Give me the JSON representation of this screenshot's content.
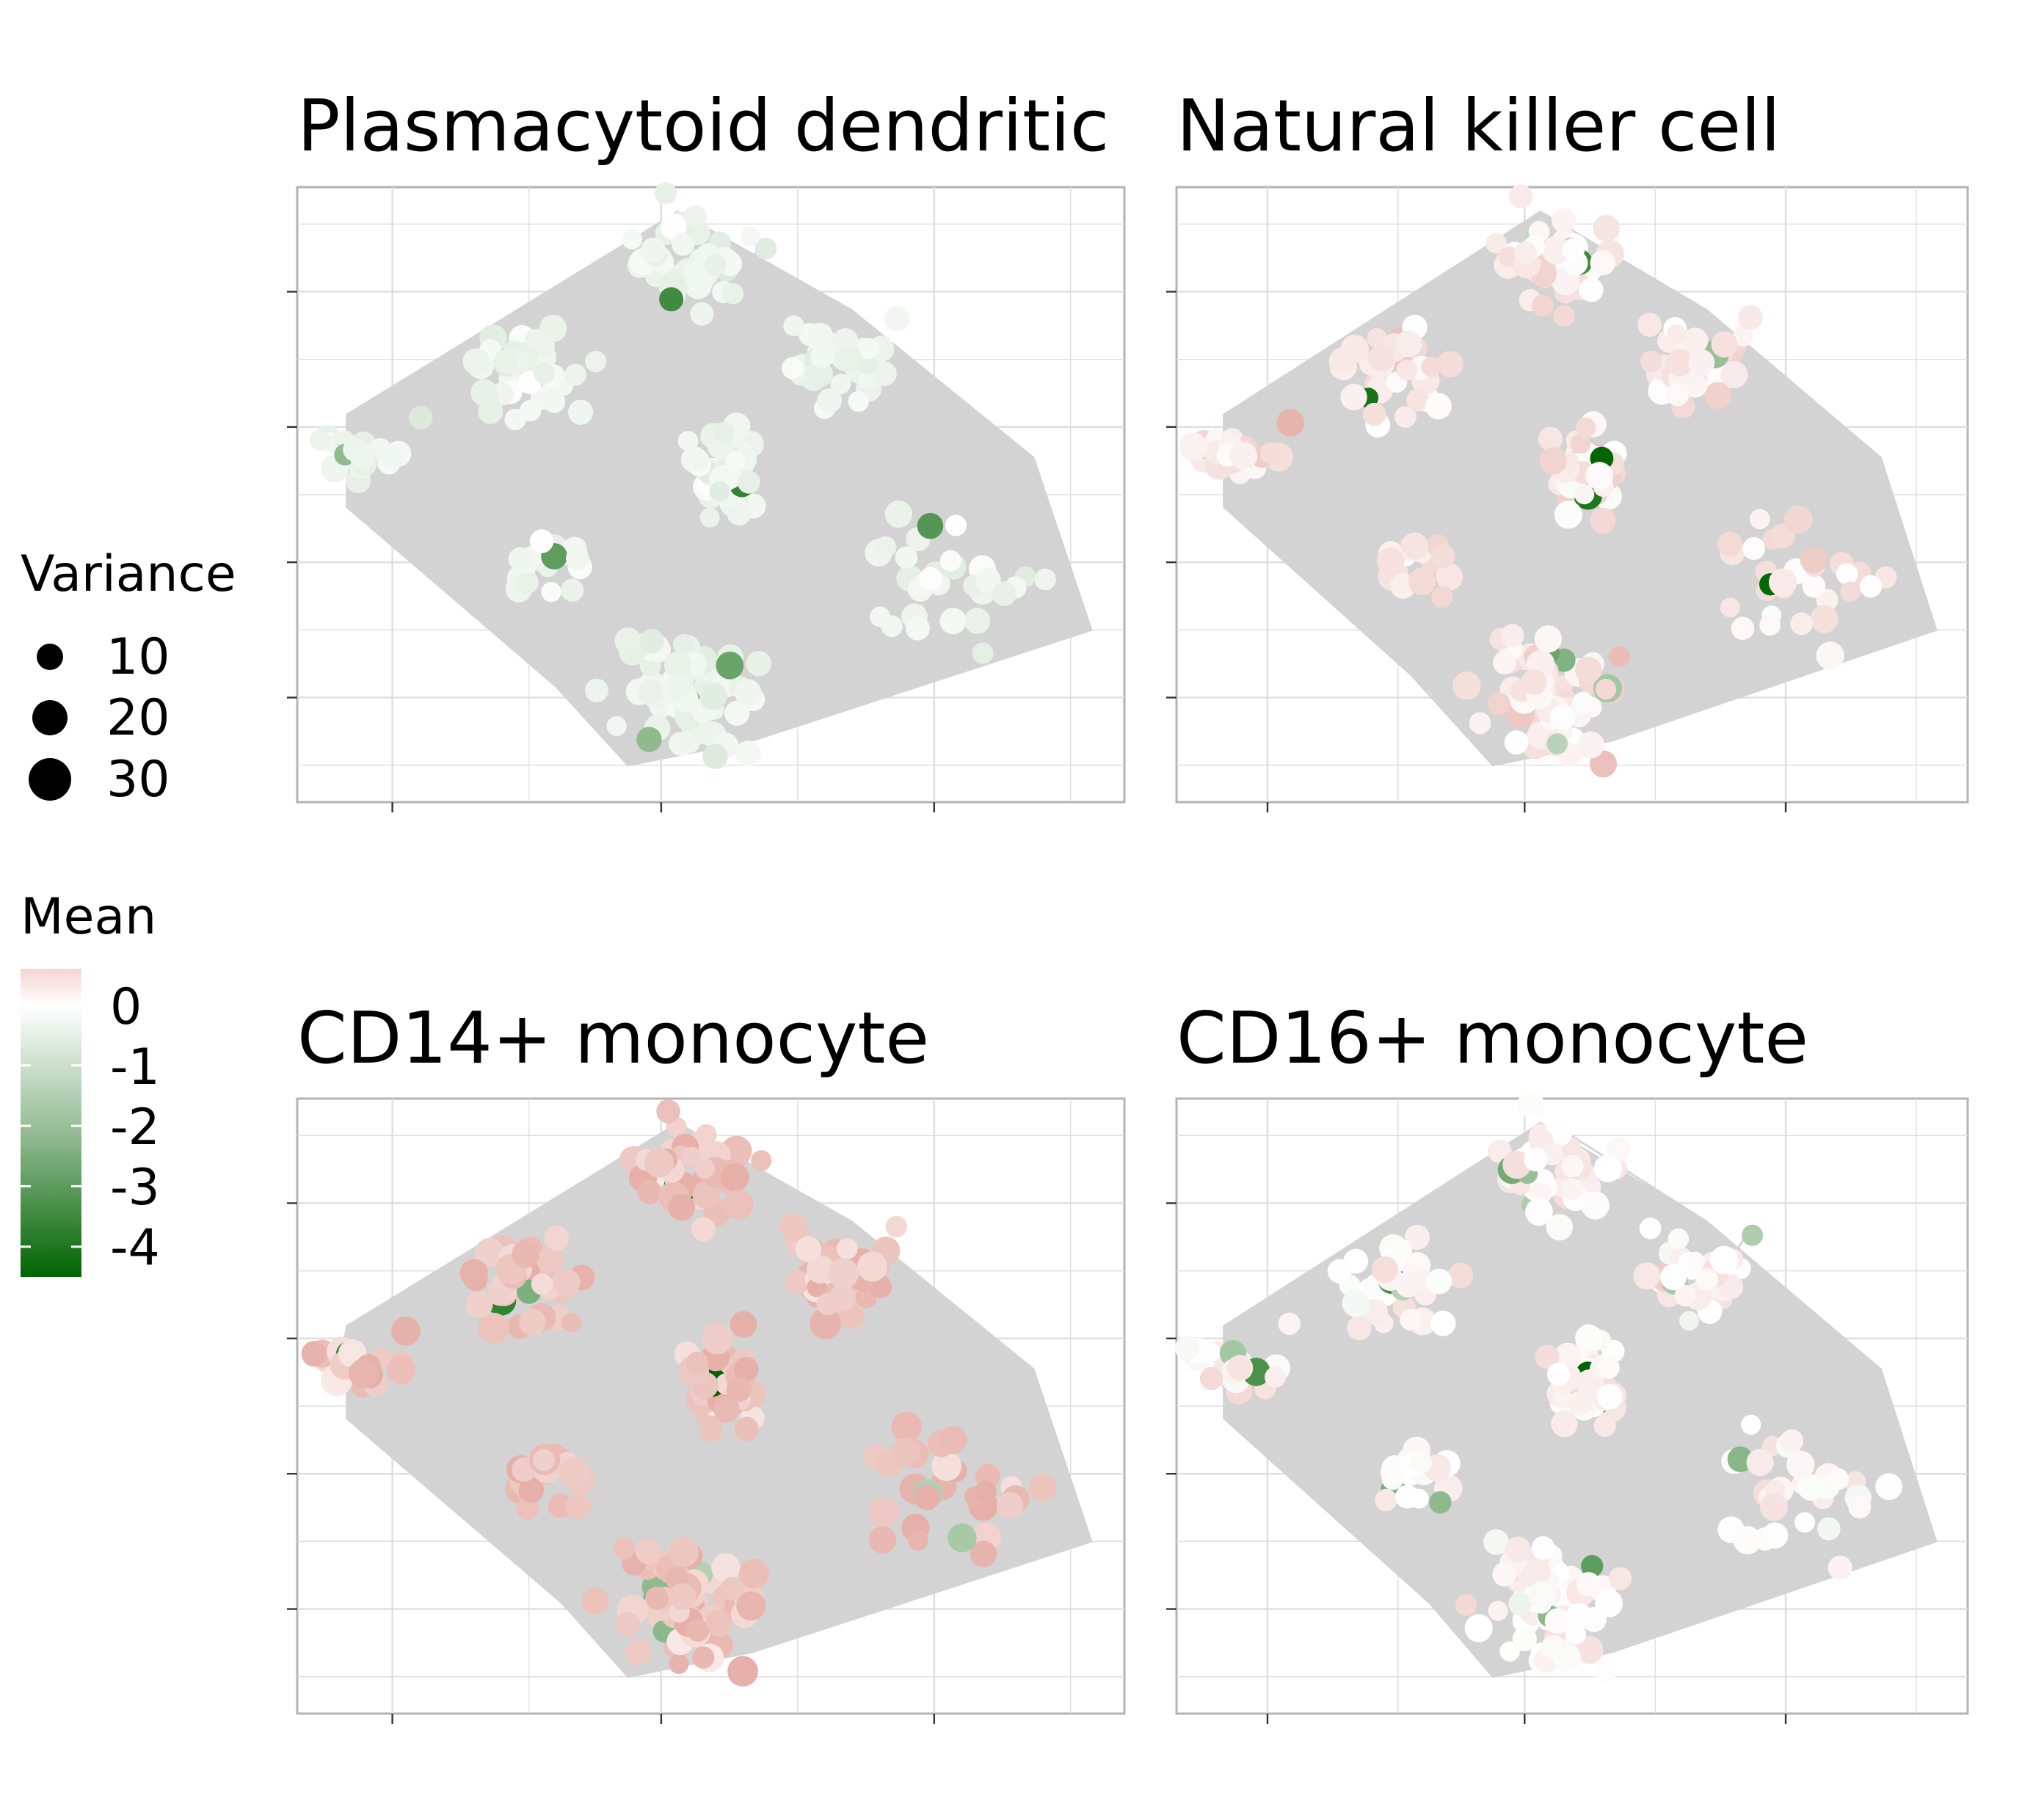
{
  "chart_data": {
    "type": "scatter",
    "description_kind": "network graph embedding, faceted by cell type, points sized by variance and colored by mean",
    "grid": true,
    "axis_tick_labels_shown": false,
    "facets": [
      {
        "title": "Plasmacytoid dendritic cell",
        "display_title": "Plasmacytoid dendritic c"
      },
      {
        "title": "Natural killer cell",
        "display_title": "Natural killer cell"
      },
      {
        "title": "CD14+ monocyte",
        "display_title": "CD14+ monocyte"
      },
      {
        "title": "CD16+ monocyte",
        "display_title": "CD16+ monocyte"
      }
    ],
    "clusters": [
      {
        "x": 0.47,
        "y": 0.13,
        "n": 40,
        "spread": 0.065
      },
      {
        "x": 0.27,
        "y": 0.3,
        "n": 35,
        "spread": 0.065
      },
      {
        "x": 0.65,
        "y": 0.28,
        "n": 35,
        "spread": 0.065
      },
      {
        "x": 0.08,
        "y": 0.44,
        "n": 20,
        "spread": 0.045
      },
      {
        "x": 0.52,
        "y": 0.47,
        "n": 40,
        "spread": 0.06
      },
      {
        "x": 0.3,
        "y": 0.62,
        "n": 18,
        "spread": 0.045
      },
      {
        "x": 0.78,
        "y": 0.63,
        "n": 30,
        "spread": 0.08
      },
      {
        "x": 0.47,
        "y": 0.82,
        "n": 60,
        "spread": 0.09
      }
    ],
    "hull": [
      [
        0.46,
        0.04
      ],
      [
        0.67,
        0.2
      ],
      [
        0.89,
        0.44
      ],
      [
        0.96,
        0.72
      ],
      [
        0.55,
        0.9
      ],
      [
        0.4,
        0.94
      ],
      [
        0.32,
        0.82
      ],
      [
        0.06,
        0.52
      ],
      [
        0.06,
        0.37
      ]
    ],
    "legend": {
      "size": {
        "title": "Variance",
        "labels": [
          "10",
          "20",
          "30"
        ],
        "values": [
          10,
          20,
          30
        ]
      },
      "color": {
        "title": "Mean",
        "labels": [
          "0",
          "-1",
          "-2",
          "-3",
          "-4"
        ],
        "values": [
          0,
          -1,
          -2,
          -3,
          -4
        ],
        "range": [
          -4.5,
          0.6
        ],
        "low_color": "#006400",
        "mid_color": "#ffffff",
        "high_color": "#e6b0a8"
      }
    },
    "panel_mean_bias": [
      -0.3,
      0.15,
      0.45,
      0.05
    ],
    "panel_size_bias": [
      0.9,
      1.1,
      1.45,
      1.0
    ],
    "colors": {
      "edge": "#d3d3d3",
      "grid": "#dedede",
      "panel_border": "#b3b3b3",
      "axis_tick": "#333333"
    }
  }
}
